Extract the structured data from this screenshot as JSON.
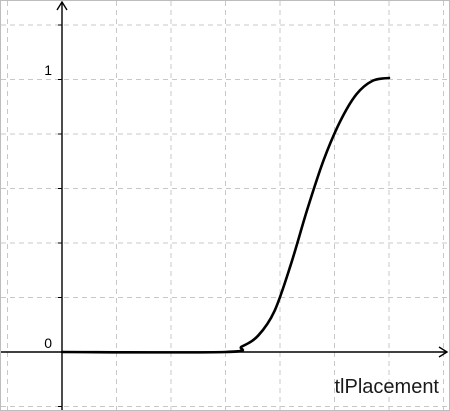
{
  "chart_data": {
    "type": "line",
    "title": "",
    "xlabel": "tlPlacement",
    "ylabel": "",
    "y_tick_labels": [
      "0",
      "1"
    ],
    "xlim": [
      0,
      1
    ],
    "ylim": [
      0,
      1
    ],
    "grid": true,
    "series": [
      {
        "values_x": [
          0.0,
          0.5,
          0.55,
          0.6,
          0.65,
          0.7,
          0.75,
          0.8,
          0.85,
          0.9,
          0.95,
          1.0
        ],
        "values_y": [
          0.0,
          0.0,
          0.02,
          0.06,
          0.15,
          0.32,
          0.52,
          0.7,
          0.84,
          0.94,
          0.99,
          1.0
        ]
      }
    ]
  }
}
